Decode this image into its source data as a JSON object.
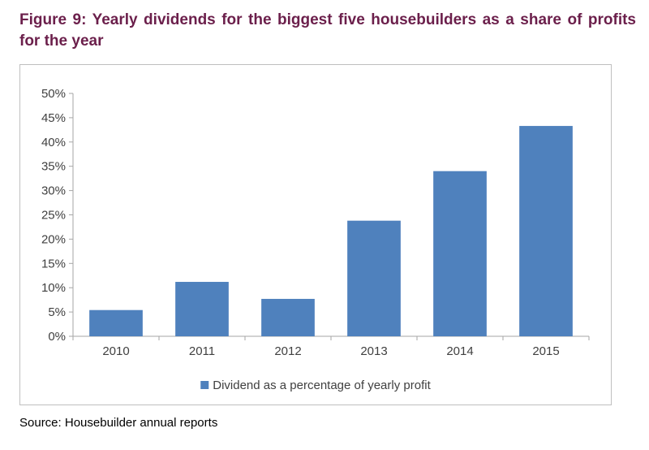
{
  "figure": {
    "title": "Figure 9: Yearly dividends for the biggest five housebuilders as a share of profits for the year",
    "source": "Source: Housebuilder annual reports"
  },
  "chart_data": {
    "type": "bar",
    "title": "",
    "categories": [
      "2010",
      "2011",
      "2012",
      "2013",
      "2014",
      "2015"
    ],
    "series": [
      {
        "name": "Dividend as a percentage of yearly profit",
        "color": "#4f81bd",
        "values": [
          5.4,
          11.2,
          7.7,
          23.8,
          34.0,
          43.3
        ]
      }
    ],
    "ylim": [
      0,
      50
    ],
    "yticks": [
      0,
      5,
      10,
      15,
      20,
      25,
      30,
      35,
      40,
      45,
      50
    ],
    "ytick_labels": [
      "0%",
      "5%",
      "10%",
      "15%",
      "20%",
      "25%",
      "30%",
      "35%",
      "40%",
      "45%",
      "50%"
    ],
    "xlabel": "",
    "ylabel": "",
    "grid": false,
    "legend_position": "bottom"
  }
}
